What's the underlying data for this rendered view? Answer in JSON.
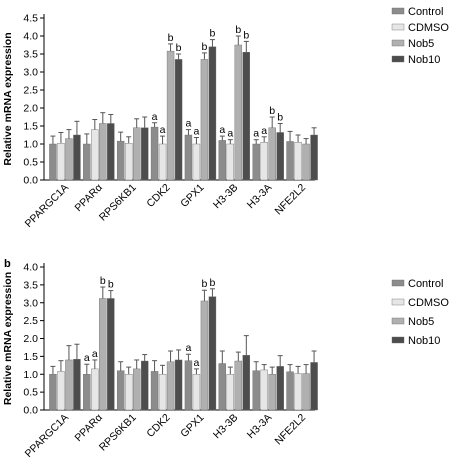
{
  "chart_data": [
    {
      "type": "bar",
      "panel_label": "",
      "ylabel": "Relative mRNA expression",
      "ylim": [
        0,
        4.5
      ],
      "yticks": [
        "0.0",
        "0.5",
        "1.0",
        "1.5",
        "2.0",
        "2.5",
        "3.0",
        "3.5",
        "4.0",
        "4.5"
      ],
      "categories": [
        "PPARGC1A",
        "PPARα",
        "RPS6KB1",
        "CDK2",
        "GPX1",
        "H3-3B",
        "H3-3A",
        "NFE2L2"
      ],
      "legend_position": "top-right",
      "series": [
        {
          "name": "Control",
          "color": "#8c8c8c",
          "values": [
            1.0,
            1.0,
            1.08,
            1.47,
            1.25,
            1.1,
            1.0,
            1.07
          ],
          "errors": [
            0.22,
            0.28,
            0.25,
            0.12,
            0.15,
            0.12,
            0.12,
            0.28
          ],
          "sig": [
            "",
            "",
            "",
            "a",
            "a",
            "a",
            "a",
            ""
          ]
        },
        {
          "name": "CDMSO",
          "color": "#e6e6e6",
          "values": [
            1.02,
            1.4,
            1.02,
            1.0,
            1.0,
            1.0,
            1.05,
            1.05
          ],
          "errors": [
            0.3,
            0.28,
            0.18,
            0.22,
            0.18,
            0.12,
            0.15,
            0.2
          ],
          "sig": [
            "",
            "",
            "",
            "a",
            "a",
            "a",
            "a",
            ""
          ]
        },
        {
          "name": "Nob5",
          "color": "#b0b0b0",
          "values": [
            1.15,
            1.57,
            1.45,
            3.58,
            3.35,
            3.75,
            1.45,
            1.0
          ],
          "errors": [
            0.25,
            0.3,
            0.25,
            0.2,
            0.18,
            0.25,
            0.3,
            0.15
          ],
          "sig": [
            "",
            "",
            "",
            "b",
            "b",
            "b",
            "b",
            ""
          ]
        },
        {
          "name": "Nob10",
          "color": "#4d4d4d",
          "values": [
            1.25,
            1.57,
            1.45,
            3.35,
            3.7,
            3.55,
            1.32,
            1.25
          ],
          "errors": [
            0.38,
            0.25,
            0.3,
            0.15,
            0.2,
            0.3,
            0.25,
            0.2
          ],
          "sig": [
            "",
            "",
            "",
            "b",
            "b",
            "b",
            "b",
            ""
          ]
        }
      ]
    },
    {
      "type": "bar",
      "panel_label": "b",
      "ylabel": "Relative mRNA expression",
      "ylim": [
        0,
        4.0
      ],
      "yticks": [
        "0.0",
        "0.5",
        "1.0",
        "1.5",
        "2.0",
        "2.5",
        "3.0",
        "3.5",
        "4.0"
      ],
      "categories": [
        "PPARGC1A",
        "PPARα",
        "RPS6KB1",
        "CDK2",
        "GPX1",
        "H3-3B",
        "H3-3A",
        "NFE2L2"
      ],
      "legend_position": "top-right",
      "series": [
        {
          "name": "Control",
          "color": "#8c8c8c",
          "values": [
            1.0,
            1.0,
            1.1,
            1.08,
            1.38,
            1.3,
            1.1,
            1.07
          ],
          "errors": [
            0.22,
            0.28,
            0.25,
            0.3,
            0.18,
            0.35,
            0.25,
            0.2
          ],
          "sig": [
            "",
            "a",
            "",
            "",
            "a",
            "",
            "",
            ""
          ]
        },
        {
          "name": "CDMSO",
          "color": "#e6e6e6",
          "values": [
            1.08,
            1.15,
            1.0,
            1.0,
            1.0,
            1.0,
            1.12,
            1.02
          ],
          "errors": [
            0.3,
            0.25,
            0.2,
            0.25,
            0.15,
            0.2,
            0.15,
            0.2
          ],
          "sig": [
            "",
            "a",
            "",
            "",
            "a",
            "",
            "",
            ""
          ]
        },
        {
          "name": "Nob5",
          "color": "#b0b0b0",
          "values": [
            1.4,
            3.12,
            1.15,
            1.35,
            3.05,
            1.37,
            1.0,
            1.02
          ],
          "errors": [
            0.4,
            0.32,
            0.25,
            0.3,
            0.3,
            0.25,
            0.2,
            0.25
          ],
          "sig": [
            "",
            "b",
            "",
            "",
            "b",
            "",
            "",
            ""
          ]
        },
        {
          "name": "Nob10",
          "color": "#4d4d4d",
          "values": [
            1.42,
            3.12,
            1.37,
            1.4,
            3.17,
            1.53,
            1.22,
            1.33
          ],
          "errors": [
            0.42,
            0.22,
            0.18,
            0.28,
            0.22,
            0.55,
            0.3,
            0.32
          ],
          "sig": [
            "",
            "b",
            "",
            "",
            "b",
            "",
            "",
            ""
          ]
        }
      ]
    }
  ]
}
